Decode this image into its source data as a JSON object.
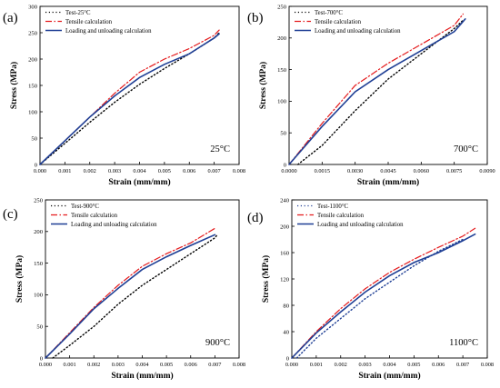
{
  "chart_data": [
    {
      "panel_label": "(a)",
      "type": "line",
      "temperature_label": "25°C",
      "xlabel": "Strain (mm/mm)",
      "ylabel": "Stress (MPa)",
      "xlim": [
        0,
        0.008
      ],
      "ylim": [
        0,
        300
      ],
      "x_ticks": [
        "0.000",
        "0.001",
        "0.002",
        "0.003",
        "0.004",
        "0.005",
        "0.006",
        "0.007",
        "0.008"
      ],
      "y_ticks": [
        "0",
        "50",
        "100",
        "150",
        "200",
        "250",
        "300"
      ],
      "legend_position": "top-left",
      "series": [
        {
          "name": "Test-25°C",
          "style": "dotted",
          "color": "#000000",
          "x": [
            0,
            0.001,
            0.002,
            0.003,
            0.004,
            0.005,
            0.006,
            0.007,
            0.0072
          ],
          "y": [
            0,
            40,
            80,
            118,
            152,
            182,
            210,
            240,
            250
          ]
        },
        {
          "name": "Tensile calculation",
          "style": "dashdot",
          "color": "#e41a1c",
          "x": [
            0,
            0.001,
            0.002,
            0.003,
            0.004,
            0.005,
            0.006,
            0.007,
            0.0072
          ],
          "y": [
            0,
            45,
            90,
            135,
            175,
            200,
            220,
            245,
            255
          ]
        },
        {
          "name": "Loading and unloading calculation",
          "style": "solid",
          "color": "#1f3f95",
          "x": [
            0,
            0.001,
            0.002,
            0.003,
            0.004,
            0.005,
            0.006,
            0.0065,
            0.007,
            0.0072
          ],
          "y": [
            0,
            45,
            90,
            130,
            165,
            190,
            210,
            225,
            240,
            248
          ]
        }
      ]
    },
    {
      "panel_label": "(b)",
      "type": "line",
      "temperature_label": "700°C",
      "xlabel": "Strain (mm/mm)",
      "ylabel": "Stress (MPa)",
      "xlim": [
        0,
        0.009
      ],
      "ylim": [
        0,
        250
      ],
      "x_ticks": [
        "0.0000",
        "0.0015",
        "0.0030",
        "0.0045",
        "0.0060",
        "0.0075",
        "0.0090"
      ],
      "y_ticks": [
        "0",
        "50",
        "100",
        "150",
        "200",
        "250"
      ],
      "legend_position": "top-left",
      "series": [
        {
          "name": "Test-700°C",
          "style": "dotted",
          "color": "#000000",
          "x": [
            0.0004,
            0.0015,
            0.003,
            0.0045,
            0.006,
            0.0075,
            0.0079
          ],
          "y": [
            0,
            30,
            85,
            135,
            175,
            215,
            228
          ]
        },
        {
          "name": "Tensile calculation",
          "style": "dashdot",
          "color": "#e41a1c",
          "x": [
            0,
            0.0015,
            0.003,
            0.0045,
            0.006,
            0.0075,
            0.0079
          ],
          "y": [
            0,
            65,
            125,
            160,
            190,
            220,
            238
          ]
        },
        {
          "name": "Loading and unloading calculation",
          "style": "solid",
          "color": "#1f3f95",
          "x": [
            0,
            0.0015,
            0.003,
            0.0045,
            0.006,
            0.0075,
            0.008
          ],
          "y": [
            0,
            60,
            115,
            150,
            180,
            210,
            230
          ]
        }
      ]
    },
    {
      "panel_label": "(c)",
      "type": "line",
      "temperature_label": "900°C",
      "xlabel": "Strain (mm/mm)",
      "ylabel": "Stress (MPa)",
      "xlim": [
        0,
        0.008
      ],
      "ylim": [
        0,
        250
      ],
      "x_ticks": [
        "0.000",
        "0.001",
        "0.002",
        "0.003",
        "0.004",
        "0.005",
        "0.006",
        "0.007",
        "0.008"
      ],
      "y_ticks": [
        "0",
        "50",
        "100",
        "150",
        "200",
        "250"
      ],
      "legend_position": "top-left",
      "series": [
        {
          "name": "Test-900°C",
          "style": "dotted",
          "color": "#000000",
          "x": [
            0.0003,
            0.001,
            0.002,
            0.003,
            0.004,
            0.005,
            0.006,
            0.007,
            0.0071
          ],
          "y": [
            0,
            20,
            50,
            85,
            115,
            140,
            165,
            190,
            195
          ]
        },
        {
          "name": "Tensile calculation",
          "style": "dashdot",
          "color": "#e41a1c",
          "x": [
            0,
            0.001,
            0.002,
            0.003,
            0.004,
            0.005,
            0.006,
            0.007
          ],
          "y": [
            0,
            40,
            80,
            115,
            145,
            165,
            182,
            205
          ]
        },
        {
          "name": "Loading and unloading calculation",
          "style": "solid",
          "color": "#1f3f95",
          "x": [
            0,
            0.001,
            0.002,
            0.003,
            0.004,
            0.005,
            0.006,
            0.007
          ],
          "y": [
            0,
            38,
            78,
            110,
            140,
            160,
            178,
            195
          ]
        }
      ]
    },
    {
      "panel_label": "(d)",
      "type": "line",
      "temperature_label": "1100°C",
      "xlabel": "Strain (mm/mm)",
      "ylabel": "Stress (MPa)",
      "xlim": [
        0,
        0.008
      ],
      "ylim": [
        0,
        240
      ],
      "x_ticks": [
        "0.000",
        "0.001",
        "0.002",
        "0.003",
        "0.004",
        "0.005",
        "0.006",
        "0.007",
        "0.008"
      ],
      "y_ticks": [
        "0",
        "40",
        "80",
        "120",
        "160",
        "200",
        "240"
      ],
      "legend_position": "top-left",
      "series": [
        {
          "name": "Test-1100°C",
          "style": "dotted",
          "color": "#1f3f95",
          "x": [
            0.0002,
            0.001,
            0.002,
            0.003,
            0.004,
            0.005,
            0.006,
            0.007
          ],
          "y": [
            0,
            30,
            60,
            90,
            115,
            140,
            162,
            180
          ]
        },
        {
          "name": "Tensile calculation",
          "style": "dashdot",
          "color": "#e41a1c",
          "x": [
            0,
            0.001,
            0.002,
            0.003,
            0.004,
            0.005,
            0.006,
            0.007,
            0.0075
          ],
          "y": [
            0,
            40,
            75,
            105,
            130,
            150,
            168,
            185,
            197
          ]
        },
        {
          "name": "Loading and unloading calculation",
          "style": "solid",
          "color": "#1f3f95",
          "x": [
            0,
            0.001,
            0.002,
            0.003,
            0.004,
            0.005,
            0.006,
            0.007,
            0.0075
          ],
          "y": [
            0,
            38,
            70,
            100,
            125,
            145,
            160,
            178,
            188
          ]
        }
      ]
    }
  ]
}
